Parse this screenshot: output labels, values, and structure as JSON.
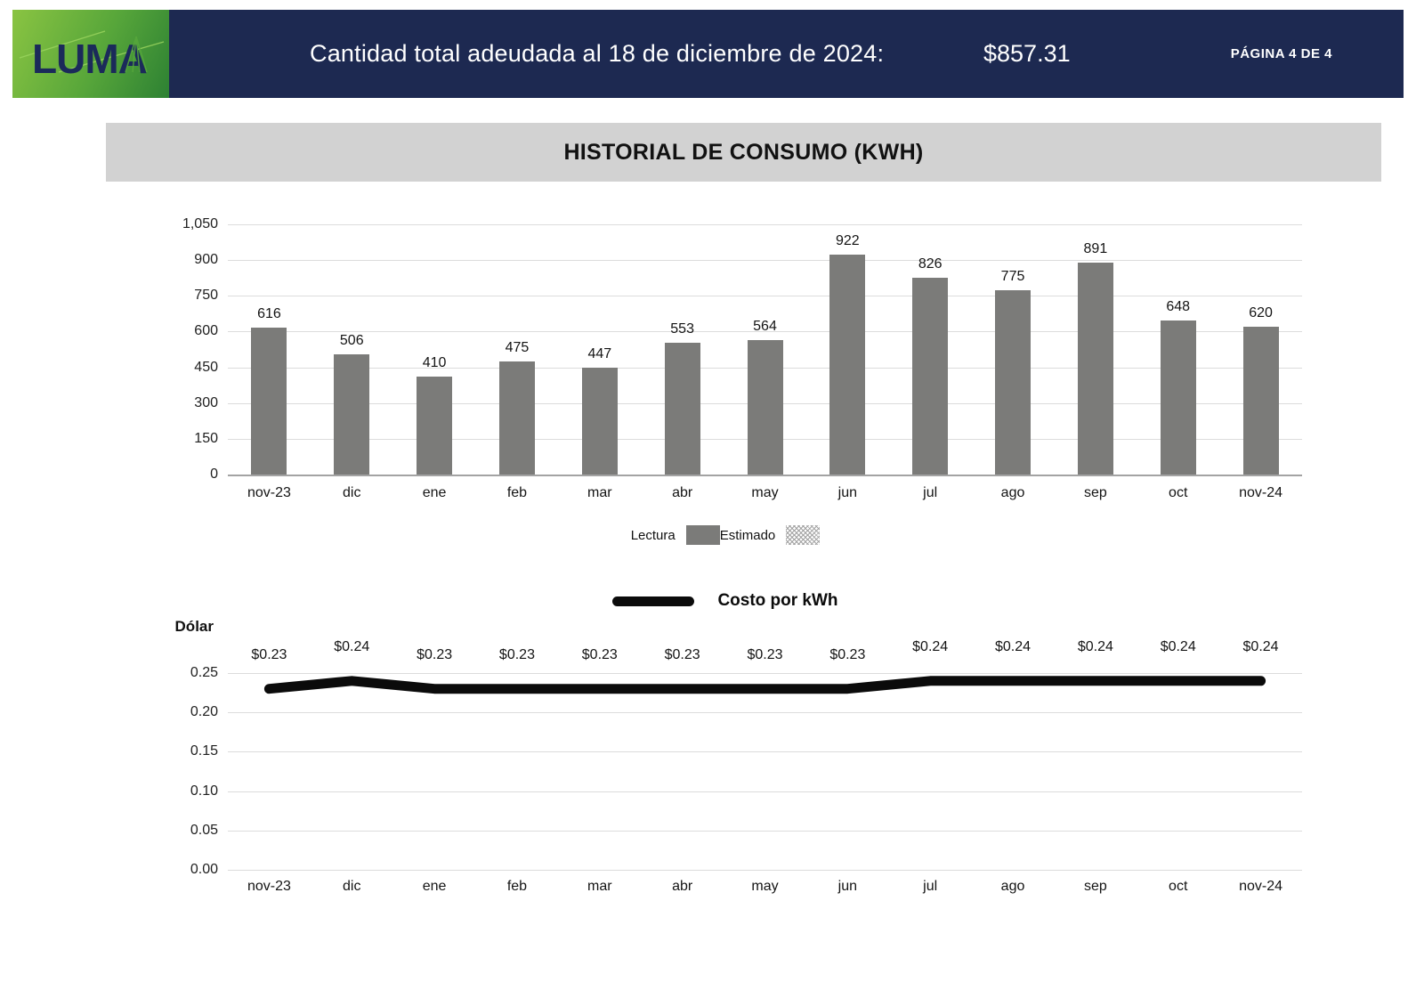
{
  "header": {
    "logo_text": "LUMA",
    "title": "Cantidad total adeudada al 18 de diciembre de 2024:",
    "amount": "$857.31",
    "page_indicator": "PÁGINA 4 DE 4",
    "navy_color": "#1d2951",
    "green_from": "#8ac442",
    "green_to": "#2d8133"
  },
  "section": {
    "title": "HISTORIAL DE CONSUMO (KWH)"
  },
  "chart_data": [
    {
      "type": "bar",
      "title": "HISTORIAL DE CONSUMO (KWH)",
      "categories": [
        "nov-23",
        "dic",
        "ene",
        "feb",
        "mar",
        "abr",
        "may",
        "jun",
        "jul",
        "ago",
        "sep",
        "oct",
        "nov-24"
      ],
      "values": [
        616,
        506,
        410,
        475,
        447,
        553,
        564,
        922,
        826,
        775,
        891,
        648,
        620
      ],
      "ylim": [
        0,
        1050
      ],
      "ytick_values": [
        0,
        150,
        300,
        450,
        600,
        750,
        900,
        1050
      ],
      "ytick_labels": [
        "0",
        "150",
        "300",
        "450",
        "600",
        "750",
        "900",
        "1,050"
      ],
      "grid": true,
      "legend_position": "bottom-center",
      "bar_color": "#7b7b79",
      "legend": [
        {
          "label": "Lectura",
          "swatch": "solid"
        },
        {
          "label": "Estimado",
          "swatch": "hatched"
        }
      ]
    },
    {
      "type": "line",
      "title": "Costo por kWh",
      "ylabel": "Dólar",
      "categories": [
        "nov-23",
        "dic",
        "ene",
        "feb",
        "mar",
        "abr",
        "may",
        "jun",
        "jul",
        "ago",
        "sep",
        "oct",
        "nov-24"
      ],
      "values": [
        0.23,
        0.24,
        0.23,
        0.23,
        0.23,
        0.23,
        0.23,
        0.23,
        0.24,
        0.24,
        0.24,
        0.24,
        0.24
      ],
      "point_labels": [
        "$0.23",
        "$0.24",
        "$0.23",
        "$0.23",
        "$0.23",
        "$0.23",
        "$0.23",
        "$0.23",
        "$0.24",
        "$0.24",
        "$0.24",
        "$0.24",
        "$0.24"
      ],
      "ylim": [
        0,
        0.27
      ],
      "ytick_values": [
        0,
        0.05,
        0.1,
        0.15,
        0.2,
        0.25
      ],
      "ytick_labels": [
        "0.00",
        "0.05",
        "0.10",
        "0.15",
        "0.20",
        "0.25"
      ],
      "grid": true,
      "legend_position": "top-center",
      "line_color": "#0b0b0b"
    }
  ]
}
